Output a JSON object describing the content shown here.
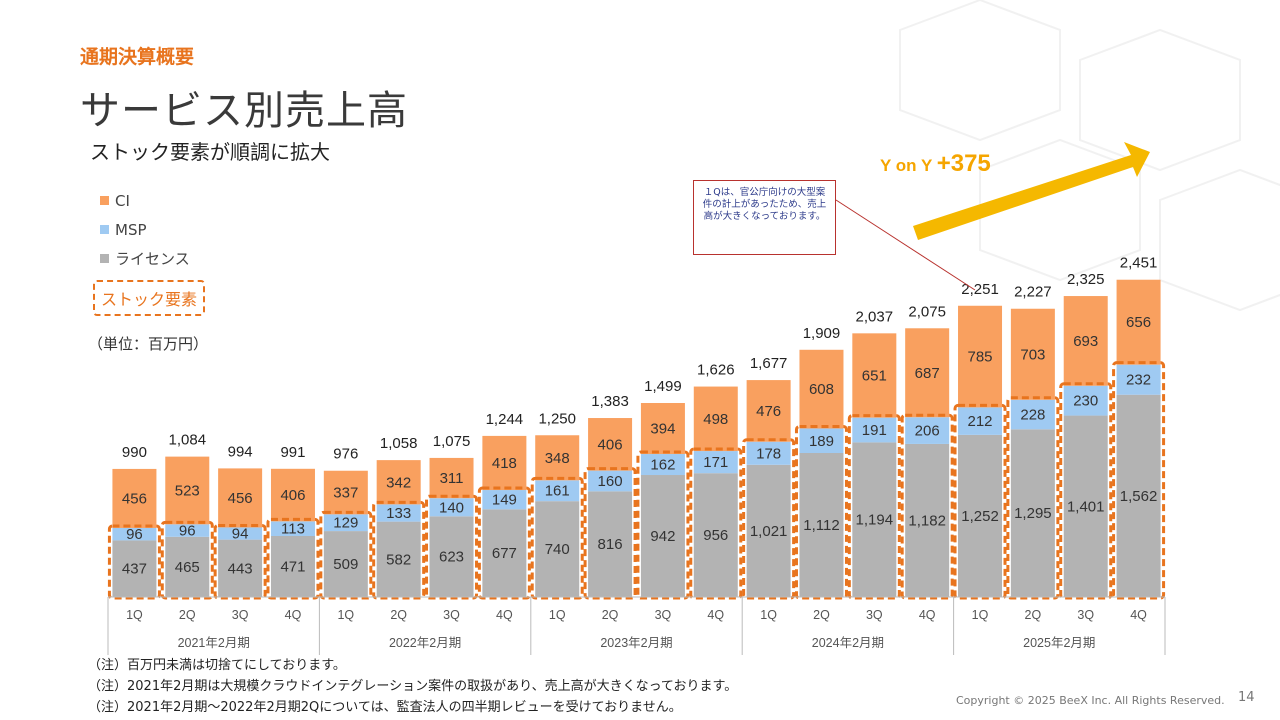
{
  "header": {
    "section_label": "通期決算概要",
    "title": "サービス別売上高",
    "subtitle": "ストック要素が順調に拡大"
  },
  "legend": {
    "items": [
      {
        "label": "CI",
        "color": "#f9a05f"
      },
      {
        "label": "MSP",
        "color": "#9fcaf2"
      },
      {
        "label": "ライセンス",
        "color": "#b3b3b3"
      }
    ],
    "stock_label": "ストック要素",
    "unit": "（単位：百万円）"
  },
  "annotation": {
    "callout": "１Qは、官公庁向けの大型案件の計上があったため、売上高が大きくなっております。",
    "yoy_prefix": "Y on Y",
    "yoy_value": "+375"
  },
  "chart_data": {
    "type": "bar",
    "stacked": true,
    "categories": [
      "1Q",
      "2Q",
      "3Q",
      "4Q",
      "1Q",
      "2Q",
      "3Q",
      "4Q",
      "1Q",
      "2Q",
      "3Q",
      "4Q",
      "1Q",
      "2Q",
      "3Q",
      "4Q",
      "1Q",
      "2Q",
      "3Q",
      "4Q"
    ],
    "groups": [
      {
        "label": "2021年2月期",
        "count": 4
      },
      {
        "label": "2022年2月期",
        "count": 4
      },
      {
        "label": "2023年2月期",
        "count": 4
      },
      {
        "label": "2024年2月期",
        "count": 4
      },
      {
        "label": "2025年2月期",
        "count": 4
      }
    ],
    "series": [
      {
        "name": "ライセンス",
        "color": "#b3b3b3",
        "values": [
          437,
          465,
          443,
          471,
          509,
          582,
          623,
          677,
          740,
          816,
          942,
          956,
          1021,
          1112,
          1194,
          1182,
          1252,
          1295,
          1401,
          1562
        ],
        "labels": [
          "437",
          "465",
          "443",
          "471",
          "509",
          "582",
          "623",
          "677",
          "740",
          "816",
          "942",
          "956",
          "1,021",
          "1,112",
          "1,194",
          "1,182",
          "1,252",
          "1,295",
          "1,401",
          "1,562"
        ]
      },
      {
        "name": "MSP",
        "color": "#9fcaf2",
        "values": [
          96,
          96,
          94,
          113,
          129,
          133,
          140,
          149,
          161,
          160,
          162,
          171,
          178,
          189,
          191,
          206,
          212,
          228,
          230,
          232
        ],
        "labels": [
          "96",
          "96",
          "94",
          "113",
          "129",
          "133",
          "140",
          "149",
          "161",
          "160",
          "162",
          "171",
          "178",
          "189",
          "191",
          "206",
          "212",
          "228",
          "230",
          "232"
        ]
      },
      {
        "name": "CI",
        "color": "#f9a05f",
        "values": [
          456,
          523,
          456,
          406,
          337,
          342,
          311,
          418,
          348,
          406,
          394,
          498,
          476,
          608,
          651,
          687,
          785,
          703,
          693,
          656
        ],
        "labels": [
          "456",
          "523",
          "456",
          "406",
          "337",
          "342",
          "311",
          "418",
          "348",
          "406",
          "394",
          "498",
          "476",
          "608",
          "651",
          "687",
          "785",
          "703",
          "693",
          "656"
        ]
      }
    ],
    "totals": [
      "990",
      "1,084",
      "994",
      "991",
      "976",
      "1,058",
      "1,075",
      "1,244",
      "1,250",
      "1,383",
      "1,499",
      "1,626",
      "1,677",
      "1,909",
      "2,037",
      "2,075",
      "2,251",
      "2,227",
      "2,325",
      "2,451"
    ],
    "ylim": [
      0,
      2700
    ],
    "grid": false
  },
  "notes": [
    "（注）百万円未満は切捨てにしております。",
    "（注）2021年2月期は大規模クラウドインテグレーション案件の取扱があり、売上高が大きくなっております。",
    "（注）2021年2月期～2022年2月期2Qについては、監査法人の四半期レビューを受けておりません。"
  ],
  "footer": {
    "copyright": "Copyright © 2025  BeeX Inc. All Rights Reserved.",
    "page_number": "14"
  },
  "colors": {
    "accent": "#e8741e",
    "arrow": "#f5b800",
    "callout_border": "#b8322e"
  }
}
